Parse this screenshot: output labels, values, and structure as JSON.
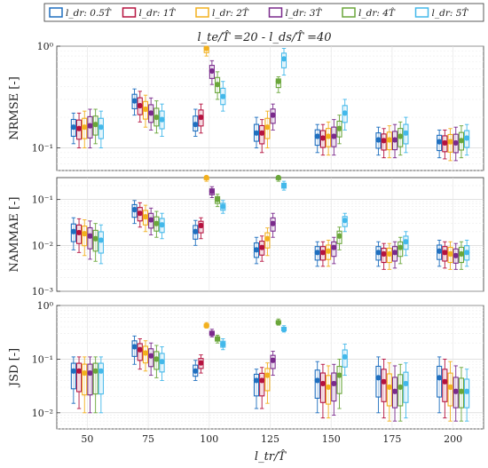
{
  "chart_data": {
    "type": "boxplot",
    "title": "l_te/T̂ =20 - l_ds/T̂ =40",
    "xlabel": "l_tr/T̂",
    "x_categories": [
      50,
      75,
      100,
      125,
      150,
      175,
      200
    ],
    "legend": {
      "placement": "top",
      "entries": [
        "l_dr: 0.5T̂",
        "l_dr: 1T̂",
        "l_dr: 2T̂",
        "l_dr: 3T̂",
        "l_dr: 4T̂",
        "l_dr: 5T̂"
      ]
    },
    "series_colors": [
      "#1f6fbf",
      "#b5123f",
      "#f2b01e",
      "#7a2a8c",
      "#6aa63a",
      "#43b8ea"
    ],
    "grid": true,
    "panels": [
      {
        "ylabel": "NRMSE [-]",
        "yscale": "log",
        "ylim": [
          0.06,
          1.0
        ],
        "yticks": [
          0.1,
          1
        ],
        "ytick_labels": [
          "10⁻¹",
          "10⁰"
        ],
        "median": [
          [
            0.16,
            0.29,
            0.17,
            0.14,
            0.13,
            0.12,
            0.115
          ],
          [
            0.155,
            0.26,
            0.2,
            0.14,
            0.125,
            0.118,
            0.112
          ],
          [
            0.16,
            0.24,
            0.95,
            0.16,
            0.13,
            0.12,
            0.115
          ],
          [
            0.165,
            0.22,
            0.57,
            0.21,
            0.13,
            0.12,
            0.112
          ],
          [
            0.17,
            0.2,
            0.42,
            0.45,
            0.155,
            0.13,
            0.118
          ],
          [
            0.16,
            0.19,
            0.32,
            0.75,
            0.22,
            0.14,
            0.125
          ]
        ],
        "whisker_low": [
          [
            0.11,
            0.21,
            0.13,
            0.1,
            0.09,
            0.085,
            0.08
          ],
          [
            0.1,
            0.18,
            0.14,
            0.09,
            0.085,
            0.08,
            0.078
          ],
          [
            0.1,
            0.16,
            0.8,
            0.1,
            0.085,
            0.08,
            0.075
          ],
          [
            0.1,
            0.15,
            0.42,
            0.15,
            0.085,
            0.08,
            0.075
          ],
          [
            0.11,
            0.14,
            0.3,
            0.35,
            0.11,
            0.085,
            0.08
          ],
          [
            0.1,
            0.13,
            0.23,
            0.52,
            0.15,
            0.09,
            0.085
          ]
        ],
        "whisker_high": [
          [
            0.22,
            0.38,
            0.24,
            0.2,
            0.17,
            0.16,
            0.15
          ],
          [
            0.22,
            0.36,
            0.27,
            0.19,
            0.17,
            0.155,
            0.15
          ],
          [
            0.23,
            0.33,
            1.0,
            0.23,
            0.18,
            0.165,
            0.155
          ],
          [
            0.24,
            0.31,
            0.72,
            0.27,
            0.19,
            0.17,
            0.16
          ],
          [
            0.24,
            0.29,
            0.56,
            0.5,
            0.21,
            0.18,
            0.165
          ],
          [
            0.23,
            0.27,
            0.45,
            0.95,
            0.3,
            0.2,
            0.17
          ]
        ]
      },
      {
        "ylabel": "NAMMAE [-]",
        "yscale": "log",
        "ylim": [
          0.001,
          0.3
        ],
        "yticks": [
          0.001,
          0.01,
          0.1
        ],
        "ytick_labels": [
          "10⁻³",
          "10⁻²",
          "10⁻¹"
        ],
        "median": [
          [
            0.02,
            0.06,
            0.02,
            0.008,
            0.007,
            0.007,
            0.0075
          ],
          [
            0.019,
            0.05,
            0.027,
            0.009,
            0.007,
            0.0065,
            0.007
          ],
          [
            0.018,
            0.042,
            0.3,
            0.014,
            0.0075,
            0.0065,
            0.0065
          ],
          [
            0.016,
            0.036,
            0.15,
            0.03,
            0.009,
            0.007,
            0.006
          ],
          [
            0.014,
            0.03,
            0.1,
            0.3,
            0.016,
            0.009,
            0.0065
          ],
          [
            0.013,
            0.028,
            0.07,
            0.2,
            0.035,
            0.012,
            0.007
          ]
        ],
        "whisker_low": [
          [
            0.008,
            0.03,
            0.01,
            0.004,
            0.0035,
            0.0035,
            0.0035
          ],
          [
            0.007,
            0.025,
            0.014,
            0.0045,
            0.0035,
            0.003,
            0.0032
          ],
          [
            0.006,
            0.02,
            0.25,
            0.006,
            0.0035,
            0.003,
            0.003
          ],
          [
            0.005,
            0.017,
            0.11,
            0.015,
            0.004,
            0.0032,
            0.003
          ],
          [
            0.0045,
            0.015,
            0.07,
            0.25,
            0.008,
            0.004,
            0.003
          ],
          [
            0.004,
            0.014,
            0.05,
            0.16,
            0.02,
            0.006,
            0.0035
          ]
        ],
        "whisker_high": [
          [
            0.04,
            0.095,
            0.035,
            0.015,
            0.012,
            0.012,
            0.013
          ],
          [
            0.038,
            0.085,
            0.04,
            0.016,
            0.012,
            0.011,
            0.012
          ],
          [
            0.036,
            0.075,
            0.3,
            0.024,
            0.013,
            0.011,
            0.012
          ],
          [
            0.034,
            0.065,
            0.19,
            0.05,
            0.015,
            0.012,
            0.011
          ],
          [
            0.03,
            0.055,
            0.13,
            0.3,
            0.025,
            0.015,
            0.012
          ],
          [
            0.028,
            0.05,
            0.095,
            0.25,
            0.05,
            0.02,
            0.013
          ]
        ]
      },
      {
        "ylabel": "JSD [-]",
        "yscale": "log",
        "ylim": [
          0.005,
          1.0
        ],
        "yticks": [
          0.01,
          0.1,
          1
        ],
        "ytick_labels": [
          "10⁻²",
          "10⁻¹",
          "10⁰"
        ],
        "median": [
          [
            0.06,
            0.17,
            0.06,
            0.04,
            0.04,
            0.045,
            0.045
          ],
          [
            0.06,
            0.15,
            0.085,
            0.04,
            0.035,
            0.038,
            0.038
          ],
          [
            0.055,
            0.13,
            0.42,
            0.05,
            0.03,
            0.03,
            0.03
          ],
          [
            0.055,
            0.115,
            0.3,
            0.095,
            0.035,
            0.025,
            0.025
          ],
          [
            0.06,
            0.1,
            0.24,
            0.48,
            0.05,
            0.03,
            0.025
          ],
          [
            0.06,
            0.09,
            0.19,
            0.36,
            0.11,
            0.035,
            0.025
          ]
        ],
        "whisker_low": [
          [
            0.015,
            0.08,
            0.04,
            0.012,
            0.01,
            0.01,
            0.01
          ],
          [
            0.012,
            0.065,
            0.055,
            0.012,
            0.008,
            0.008,
            0.008
          ],
          [
            0.01,
            0.06,
            0.38,
            0.015,
            0.008,
            0.007,
            0.007
          ],
          [
            0.01,
            0.05,
            0.26,
            0.05,
            0.009,
            0.007,
            0.007
          ],
          [
            0.01,
            0.045,
            0.2,
            0.43,
            0.012,
            0.007,
            0.007
          ],
          [
            0.01,
            0.04,
            0.15,
            0.32,
            0.05,
            0.008,
            0.007
          ]
        ],
        "whisker_high": [
          [
            0.11,
            0.27,
            0.095,
            0.065,
            0.09,
            0.11,
            0.11
          ],
          [
            0.11,
            0.24,
            0.12,
            0.07,
            0.08,
            0.1,
            0.1
          ],
          [
            0.11,
            0.22,
            0.48,
            0.085,
            0.075,
            0.085,
            0.09
          ],
          [
            0.11,
            0.2,
            0.36,
            0.14,
            0.08,
            0.075,
            0.075
          ],
          [
            0.11,
            0.18,
            0.28,
            0.56,
            0.1,
            0.08,
            0.07
          ],
          [
            0.11,
            0.17,
            0.24,
            0.42,
            0.19,
            0.085,
            0.065
          ]
        ]
      }
    ]
  }
}
